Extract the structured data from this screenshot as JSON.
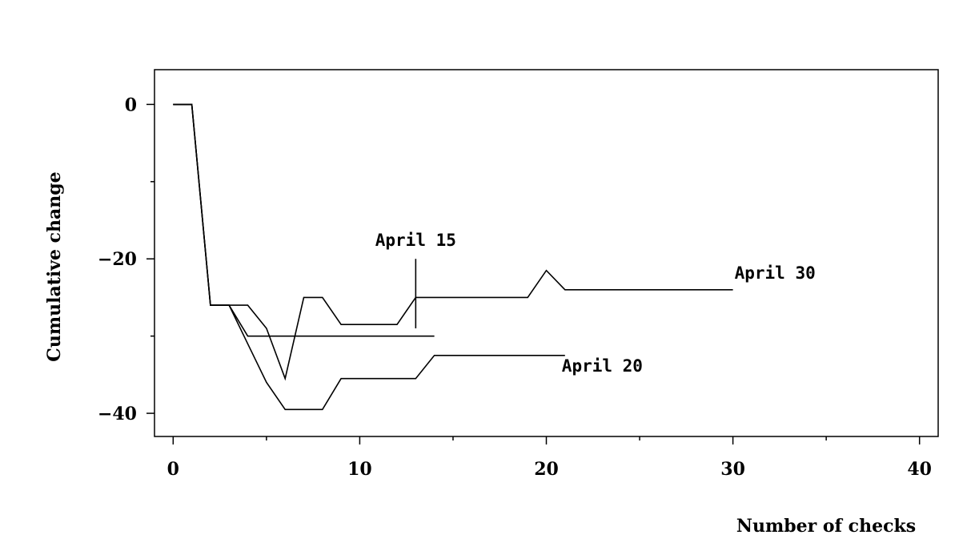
{
  "chart_data": {
    "type": "line",
    "title": "",
    "xlabel": "Number of checks",
    "ylabel": "Cumulative change",
    "xlim": [
      -1,
      41
    ],
    "ylim": [
      -43,
      4.5
    ],
    "x_ticks_labeled": [
      0,
      10,
      20,
      30,
      40
    ],
    "x_ticks_minor": [
      5,
      15,
      25,
      35
    ],
    "y_ticks_labeled": [
      0,
      -20,
      -40
    ],
    "y_ticks_minor": [
      -10,
      -30
    ],
    "grid": false,
    "legend": "none",
    "series": [
      {
        "name": "April 15",
        "x": [
          0,
          1,
          2,
          3,
          4,
          5,
          6,
          7,
          8,
          9,
          10,
          11,
          12,
          13,
          14
        ],
        "y": [
          0,
          0,
          -26,
          -26,
          -30,
          -30,
          -30,
          -30,
          -30,
          -30,
          -30,
          -30,
          -30,
          -30,
          -30
        ]
      },
      {
        "name": "April 20",
        "x": [
          0,
          1,
          2,
          3,
          4,
          5,
          6,
          7,
          8,
          9,
          10,
          11,
          12,
          13,
          14,
          15,
          16,
          17,
          18,
          19,
          20,
          21
        ],
        "y": [
          0,
          0,
          -26,
          -26,
          -31,
          -36,
          -39.5,
          -39.5,
          -39.5,
          -35.5,
          -35.5,
          -35.5,
          -35.5,
          -35.5,
          -32.5,
          -32.5,
          -32.5,
          -32.5,
          -32.5,
          -32.5,
          -32.5,
          -32.5
        ]
      },
      {
        "name": "April 30",
        "x": [
          0,
          1,
          2,
          3,
          4,
          5,
          6,
          7,
          8,
          9,
          10,
          11,
          12,
          13,
          14,
          15,
          16,
          17,
          18,
          19,
          20,
          21,
          22,
          23,
          24,
          25,
          26,
          27,
          28,
          29,
          30
        ],
        "y": [
          0,
          0,
          -26,
          -26,
          -26,
          -29,
          -35.5,
          -25,
          -25,
          -28.5,
          -28.5,
          -28.5,
          -28.5,
          -25,
          -25,
          -25,
          -25,
          -25,
          -25,
          -25,
          -21.5,
          -24,
          -24,
          -24,
          -24,
          -24,
          -24,
          -24,
          -24,
          -24,
          -24
        ]
      }
    ],
    "annotations": [
      {
        "text": "April 15",
        "series": "April 15",
        "x": 13,
        "marker_y": [
          -20,
          -29
        ]
      },
      {
        "text": "April 20",
        "series": "April 20",
        "x": 21
      },
      {
        "text": "April 30",
        "series": "April 30",
        "x": 30
      }
    ]
  }
}
